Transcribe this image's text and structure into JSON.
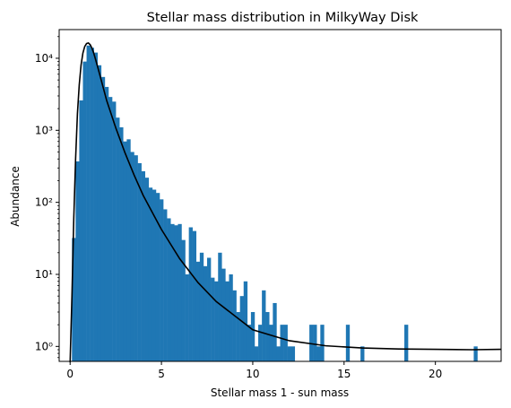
{
  "chart_data": {
    "type": "bar",
    "title": "Stellar mass distribution in MilkyWay Disk",
    "xlabel": "Stellar mass 1 - sun mass",
    "ylabel": "Abundance",
    "xlim": [
      -0.6,
      23.6
    ],
    "ylim": [
      0.62,
      25000
    ],
    "yscale": "log",
    "grid": false,
    "bar_color": "#1f77b4",
    "curve_color": "#000000",
    "x_ticks": [
      0,
      5,
      10,
      15,
      20
    ],
    "x_tick_labels": [
      "0",
      "5",
      "10",
      "15",
      "20"
    ],
    "y_ticks": [
      1,
      10,
      100,
      1000,
      10000
    ],
    "y_tick_labels": [
      "10⁰",
      "10¹",
      "10²",
      "10³",
      "10⁴"
    ],
    "bin_width": 0.2,
    "histogram": {
      "bin_edges_start": 0.1,
      "counts": [
        32,
        370,
        2600,
        9000,
        15000,
        14000,
        12000,
        8000,
        5500,
        4000,
        2900,
        2500,
        1500,
        1100,
        700,
        750,
        500,
        450,
        350,
        270,
        220,
        160,
        150,
        135,
        110,
        80,
        60,
        50,
        48,
        50,
        30,
        10,
        45,
        40,
        15,
        20,
        13,
        17,
        9,
        8,
        20,
        12,
        8,
        10,
        6,
        3,
        5,
        8,
        2,
        3,
        1,
        2,
        6,
        3,
        2,
        4,
        1,
        2,
        2,
        1,
        1,
        0,
        0,
        0,
        0,
        2,
        2,
        1,
        2,
        0,
        0,
        0,
        0,
        0,
        0,
        2,
        0,
        0,
        0,
        1,
        0,
        0,
        0,
        0,
        0,
        0,
        0,
        0,
        0,
        0,
        0,
        2,
        0,
        0,
        0,
        0,
        0,
        0,
        0,
        0,
        0,
        0,
        0,
        0,
        0,
        0,
        0,
        0,
        0,
        0,
        1
      ]
    },
    "fit_curve": {
      "x": [
        0.0,
        0.1,
        0.2,
        0.3,
        0.4,
        0.5,
        0.6,
        0.7,
        0.8,
        0.9,
        1.0,
        1.1,
        1.2,
        1.3,
        1.4,
        1.5,
        1.7,
        2.0,
        2.5,
        3.0,
        3.5,
        4.0,
        5.0,
        6.0,
        7.0,
        8.0,
        10.0,
        12.0,
        14.0,
        16.0,
        18.0,
        20.0,
        22.0,
        23.6
      ],
      "y": [
        0.6,
        5,
        60,
        400,
        1700,
        4300,
        8100,
        11800,
        14600,
        16000,
        16300,
        15400,
        13700,
        11600,
        9500,
        7700,
        5000,
        2600,
        1080,
        490,
        240,
        125,
        42,
        16.5,
        7.7,
        4.2,
        1.7,
        1.2,
        1.02,
        0.95,
        0.92,
        0.91,
        0.9,
        0.91
      ]
    }
  }
}
